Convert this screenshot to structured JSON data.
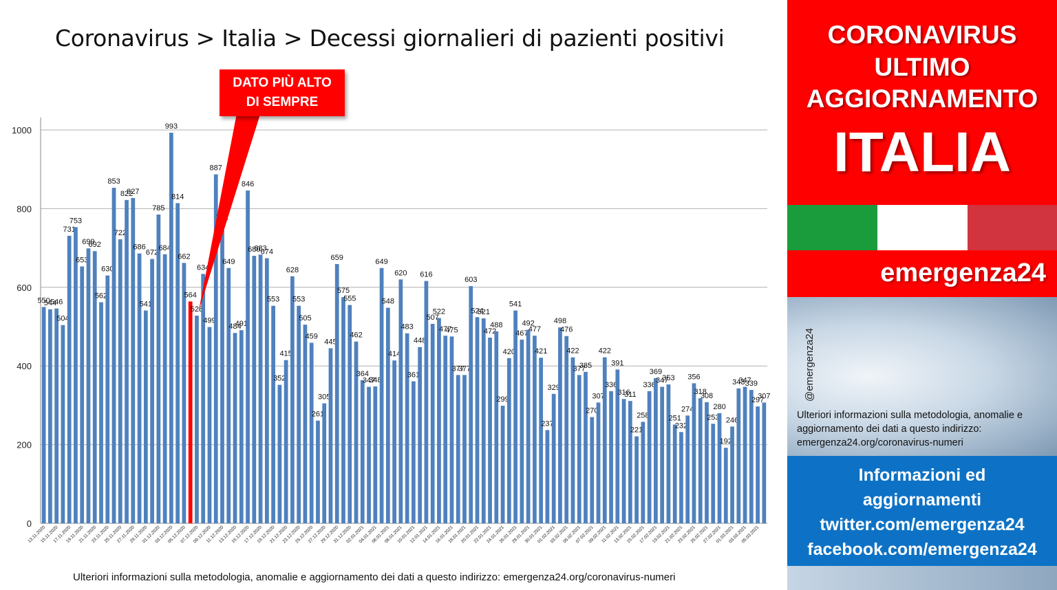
{
  "page": {
    "title": "Coronavirus > Italia > Decessi giornalieri di pazienti positivi",
    "callout_line1": "DATO PIÙ ALTO",
    "callout_line2": "DI SEMPRE",
    "footnote": "Ulteriori informazioni sulla metodologia, anomalie e aggiornamento dei dati a questo indirizzo: emergenza24.org/coronavirus-numeri"
  },
  "panel": {
    "headline1": "CORONAVIRUS",
    "headline2": "ULTIMO",
    "headline3": "AGGIORNAMENTO",
    "country": "ITALIA",
    "brand": "emergenza24",
    "handle": "@emergenza24",
    "info": "Ulteriori informazioni sulla metodologia, anomalie e aggiornamento dei dati a questo indirizzo: emergenza24.org/coronavirus-numeri",
    "social1": "Informazioni ed",
    "social2": "aggiornamenti",
    "social3": "twitter.com/emergenza24",
    "social4": "facebook.com/emergenza24",
    "flag_colors": [
      "#1a9b3c",
      "#ffffff",
      "#d1343f"
    ],
    "accent": "#ff0000",
    "social_bg": "#0d72c5"
  },
  "chart_data": {
    "type": "bar",
    "title": "Coronavirus > Italia > Decessi giornalieri di pazienti positivi",
    "xlabel": "",
    "ylabel": "",
    "ylim": [
      0,
      1000
    ],
    "yticks": [
      0,
      200,
      400,
      600,
      800,
      1000
    ],
    "grid": true,
    "bar_color": "#4f81bd",
    "highlight_color": "#ff0000",
    "highlight_index": 23,
    "values": [
      550,
      544,
      546,
      504,
      731,
      753,
      653,
      699,
      692,
      562,
      630,
      853,
      722,
      822,
      827,
      686,
      541,
      672,
      785,
      684,
      993,
      814,
      662,
      564,
      528,
      634,
      499,
      887,
      761,
      649,
      484,
      491,
      846,
      680,
      683,
      674,
      553,
      352,
      415,
      628,
      553,
      505,
      459,
      261,
      305,
      445,
      659,
      575,
      555,
      462,
      364,
      347,
      348,
      649,
      548,
      414,
      620,
      483,
      361,
      448,
      616,
      507,
      522,
      477,
      475,
      377,
      377,
      603,
      524,
      521,
      472,
      488,
      299,
      420,
      541,
      467,
      492,
      477,
      421,
      237,
      329,
      498,
      476,
      422,
      377,
      385,
      270,
      307,
      422,
      336,
      391,
      316,
      311,
      221,
      258,
      336,
      369,
      347,
      353,
      251,
      232,
      274,
      356,
      318,
      308,
      253,
      280,
      192,
      246,
      343,
      347,
      339,
      297,
      307
    ],
    "xtick_labels": [
      "13.11.2020",
      "15.11.2020",
      "17.11.2020",
      "19.11.2020",
      "21.11.2020",
      "23.11.2020",
      "25.11.2020",
      "27.11.2020",
      "29.11.2020",
      "01.12.2020",
      "03.12.2020",
      "05.12.2020",
      "07.12.2020",
      "09.12.2020",
      "11.12.2020",
      "13.12.2020",
      "15.12.2020",
      "17.12.2020",
      "19.12.2020",
      "21.12.2020",
      "23.12.2020",
      "25.12.2020",
      "27.12.2020",
      "29.12.2020",
      "31.12.2020",
      "02.01.2021",
      "04.01.2021",
      "06.01.2021",
      "08.01.2021",
      "10.01.2021",
      "12.01.2021",
      "14.01.2021",
      "16.01.2021",
      "18.01.2021",
      "20.01.2021",
      "22.01.2021",
      "24.01.2021",
      "26.01.2021",
      "28.01.2021",
      "30.01.2021",
      "01.02.2021",
      "03.02.2021",
      "05.02.2021",
      "07.02.2021",
      "09.02.2021",
      "11.02.2021",
      "13.02.2021",
      "15.02.2021",
      "17.02.2021",
      "19.02.2021",
      "21.02.2021",
      "23.02.2021",
      "25.02.2021",
      "27.02.2021",
      "01.03.2021",
      "03.03.2021",
      "05.03.2021"
    ]
  }
}
